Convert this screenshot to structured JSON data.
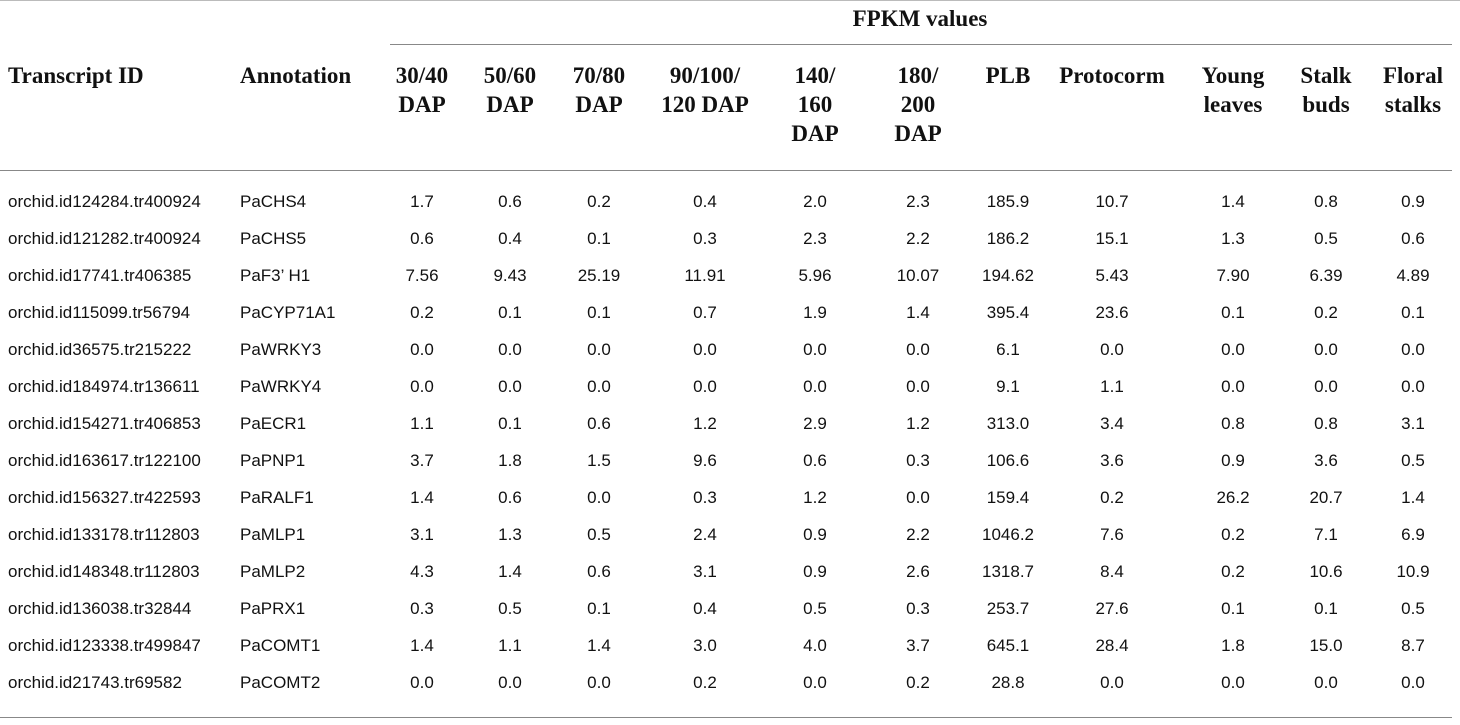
{
  "table": {
    "group_header": "FPKM values",
    "columns": [
      "Transcript ID",
      "Annotation",
      "30/40\nDAP",
      "50/60\nDAP",
      "70/80\nDAP",
      "90/100/\n120 DAP",
      "140/\n160\nDAP",
      "180/\n200\nDAP",
      "PLB",
      "Protocorm",
      "Young\nleaves",
      "Stalk\nbuds",
      "Floral\nstalks"
    ],
    "rows": [
      [
        "orchid.id124284.tr400924",
        "PaCHS4",
        "1.7",
        "0.6",
        "0.2",
        "0.4",
        "2.0",
        "2.3",
        "185.9",
        "10.7",
        "1.4",
        "0.8",
        "0.9"
      ],
      [
        "orchid.id121282.tr400924",
        "PaCHS5",
        "0.6",
        "0.4",
        "0.1",
        "0.3",
        "2.3",
        "2.2",
        "186.2",
        "15.1",
        "1.3",
        "0.5",
        "0.6"
      ],
      [
        "orchid.id17741.tr406385",
        "PaF3’ H1",
        "7.56",
        "9.43",
        "25.19",
        "11.91",
        "5.96",
        "10.07",
        "194.62",
        "5.43",
        "7.90",
        "6.39",
        "4.89"
      ],
      [
        "orchid.id115099.tr56794",
        "PaCYP71A1",
        "0.2",
        "0.1",
        "0.1",
        "0.7",
        "1.9",
        "1.4",
        "395.4",
        "23.6",
        "0.1",
        "0.2",
        "0.1"
      ],
      [
        "orchid.id36575.tr215222",
        "PaWRKY3",
        "0.0",
        "0.0",
        "0.0",
        "0.0",
        "0.0",
        "0.0",
        "6.1",
        "0.0",
        "0.0",
        "0.0",
        "0.0"
      ],
      [
        "orchid.id184974.tr136611",
        "PaWRKY4",
        "0.0",
        "0.0",
        "0.0",
        "0.0",
        "0.0",
        "0.0",
        "9.1",
        "1.1",
        "0.0",
        "0.0",
        "0.0"
      ],
      [
        "orchid.id154271.tr406853",
        "PaECR1",
        "1.1",
        "0.1",
        "0.6",
        "1.2",
        "2.9",
        "1.2",
        "313.0",
        "3.4",
        "0.8",
        "0.8",
        "3.1"
      ],
      [
        "orchid.id163617.tr122100",
        "PaPNP1",
        "3.7",
        "1.8",
        "1.5",
        "9.6",
        "0.6",
        "0.3",
        "106.6",
        "3.6",
        "0.9",
        "3.6",
        "0.5"
      ],
      [
        "orchid.id156327.tr422593",
        "PaRALF1",
        "1.4",
        "0.6",
        "0.0",
        "0.3",
        "1.2",
        "0.0",
        "159.4",
        "0.2",
        "26.2",
        "20.7",
        "1.4"
      ],
      [
        "orchid.id133178.tr112803",
        "PaMLP1",
        "3.1",
        "1.3",
        "0.5",
        "2.4",
        "0.9",
        "2.2",
        "1046.2",
        "7.6",
        "0.2",
        "7.1",
        "6.9"
      ],
      [
        "orchid.id148348.tr112803",
        "PaMLP2",
        "4.3",
        "1.4",
        "0.6",
        "3.1",
        "0.9",
        "2.6",
        "1318.7",
        "8.4",
        "0.2",
        "10.6",
        "10.9"
      ],
      [
        "orchid.id136038.tr32844",
        "PaPRX1",
        "0.3",
        "0.5",
        "0.1",
        "0.4",
        "0.5",
        "0.3",
        "253.7",
        "27.6",
        "0.1",
        "0.1",
        "0.5"
      ],
      [
        "orchid.id123338.tr499847",
        "PaCOMT1",
        "1.4",
        "1.1",
        "1.4",
        "3.0",
        "4.0",
        "3.7",
        "645.1",
        "28.4",
        "1.8",
        "15.0",
        "8.7"
      ],
      [
        "orchid.id21743.tr69582",
        "PaCOMT2",
        "0.0",
        "0.0",
        "0.0",
        "0.2",
        "0.0",
        "0.2",
        "28.8",
        "0.0",
        "0.0",
        "0.0",
        "0.0"
      ]
    ]
  }
}
